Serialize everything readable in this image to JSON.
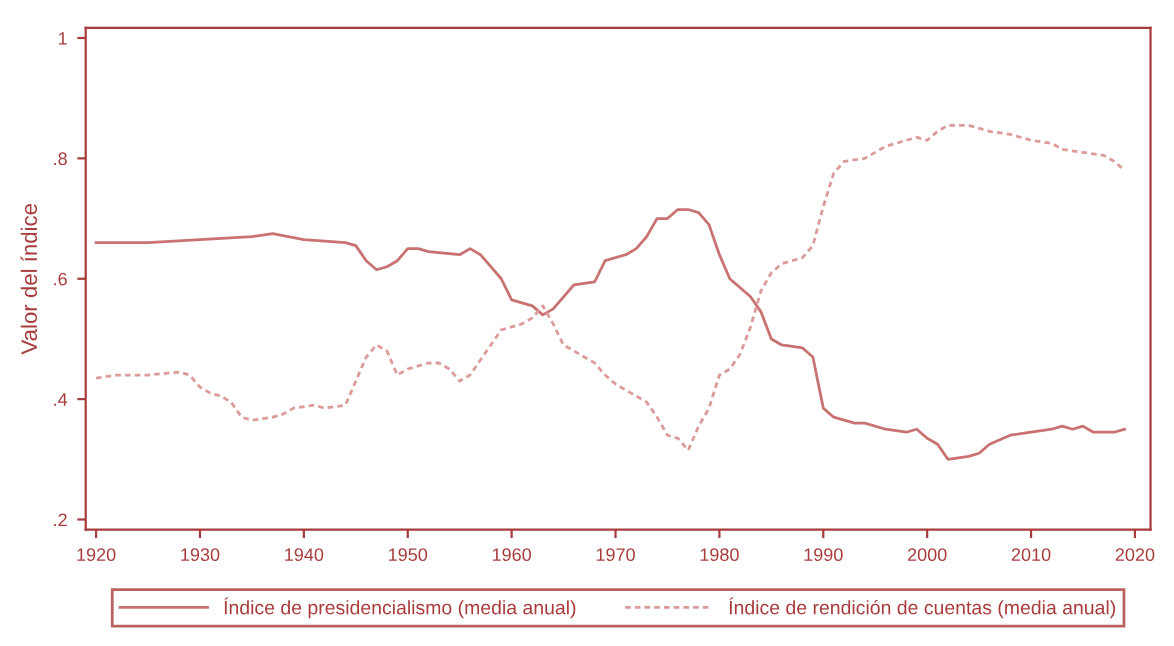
{
  "chart_data": {
    "type": "line",
    "ylabel": "Valor del índice",
    "xlim": [
      1919,
      2021.5
    ],
    "xticks": [
      1920,
      1930,
      1940,
      1950,
      1960,
      1970,
      1980,
      1990,
      2000,
      2010,
      2020
    ],
    "ylim": [
      0.183,
      1.017
    ],
    "yticks": [
      {
        "value": 0.2,
        "label": ".2"
      },
      {
        "value": 0.4,
        "label": ".4"
      },
      {
        "value": 0.6,
        "label": ".6"
      },
      {
        "value": 0.8,
        "label": ".8"
      },
      {
        "value": 1,
        "label": "1"
      }
    ],
    "grid": false,
    "legend": "bottom",
    "marker": "none",
    "series": [
      {
        "name": "Índice de presidencialismo (media anual)",
        "color": "#c87272",
        "line_style": "solid",
        "x": [
          1920,
          1925,
          1930,
          1935,
          1937,
          1940,
          1944,
          1945,
          1946,
          1947,
          1948,
          1949,
          1950,
          1951,
          1952,
          1955,
          1956,
          1957,
          1958,
          1959,
          1960,
          1962,
          1963,
          1964,
          1965,
          1966,
          1968,
          1969,
          1971,
          1972,
          1973,
          1974,
          1975,
          1976,
          1977,
          1978,
          1979,
          1980,
          1981,
          1982,
          1983,
          1984,
          1985,
          1986,
          1988,
          1989,
          1990,
          1991,
          1993,
          1994,
          1996,
          1998,
          1999,
          2000,
          2001,
          2002,
          2004,
          2005,
          2006,
          2008,
          2010,
          2012,
          2013,
          2014,
          2015,
          2016,
          2018,
          2019
        ],
        "values": [
          0.66,
          0.66,
          0.665,
          0.67,
          0.675,
          0.665,
          0.66,
          0.655,
          0.63,
          0.615,
          0.62,
          0.63,
          0.65,
          0.65,
          0.645,
          0.64,
          0.65,
          0.64,
          0.62,
          0.6,
          0.565,
          0.555,
          0.54,
          0.55,
          0.57,
          0.59,
          0.595,
          0.63,
          0.64,
          0.65,
          0.67,
          0.7,
          0.7,
          0.715,
          0.715,
          0.71,
          0.69,
          0.64,
          0.6,
          0.585,
          0.57,
          0.545,
          0.5,
          0.49,
          0.485,
          0.47,
          0.385,
          0.37,
          0.36,
          0.36,
          0.35,
          0.345,
          0.35,
          0.335,
          0.325,
          0.3,
          0.305,
          0.31,
          0.325,
          0.34,
          0.345,
          0.35,
          0.355,
          0.35,
          0.355,
          0.345,
          0.345,
          0.35
        ]
      },
      {
        "name": "Índice de rendición de cuentas (media anual)",
        "color": "#dc9a9a",
        "line_style": "dashed",
        "x": [
          1920,
          1922,
          1925,
          1928,
          1929,
          1930,
          1931,
          1932,
          1933,
          1934,
          1935,
          1937,
          1938,
          1939,
          1941,
          1942,
          1944,
          1945,
          1946,
          1947,
          1948,
          1949,
          1950,
          1952,
          1953,
          1954,
          1955,
          1956,
          1957,
          1958,
          1959,
          1961,
          1962,
          1963,
          1964,
          1965,
          1966,
          1967,
          1968,
          1969,
          1970,
          1971,
          1972,
          1973,
          1974,
          1975,
          1976,
          1977,
          1978,
          1979,
          1980,
          1981,
          1982,
          1983,
          1984,
          1985,
          1986,
          1988,
          1989,
          1990,
          1991,
          1992,
          1994,
          1995,
          1996,
          1998,
          1999,
          2000,
          2001,
          2002,
          2004,
          2006,
          2008,
          2010,
          2012,
          2013,
          2015,
          2017,
          2018,
          2019
        ],
        "values": [
          0.435,
          0.44,
          0.44,
          0.445,
          0.44,
          0.42,
          0.41,
          0.405,
          0.395,
          0.37,
          0.365,
          0.37,
          0.375,
          0.385,
          0.39,
          0.385,
          0.39,
          0.43,
          0.47,
          0.49,
          0.48,
          0.44,
          0.45,
          0.46,
          0.46,
          0.45,
          0.43,
          0.44,
          0.465,
          0.49,
          0.515,
          0.525,
          0.535,
          0.555,
          0.525,
          0.49,
          0.48,
          0.47,
          0.46,
          0.44,
          0.425,
          0.415,
          0.405,
          0.395,
          0.37,
          0.34,
          0.335,
          0.315,
          0.355,
          0.385,
          0.44,
          0.45,
          0.475,
          0.52,
          0.58,
          0.61,
          0.625,
          0.635,
          0.655,
          0.72,
          0.775,
          0.795,
          0.8,
          0.81,
          0.82,
          0.83,
          0.835,
          0.83,
          0.845,
          0.855,
          0.855,
          0.845,
          0.84,
          0.83,
          0.825,
          0.815,
          0.81,
          0.805,
          0.795,
          0.78
        ]
      }
    ]
  }
}
